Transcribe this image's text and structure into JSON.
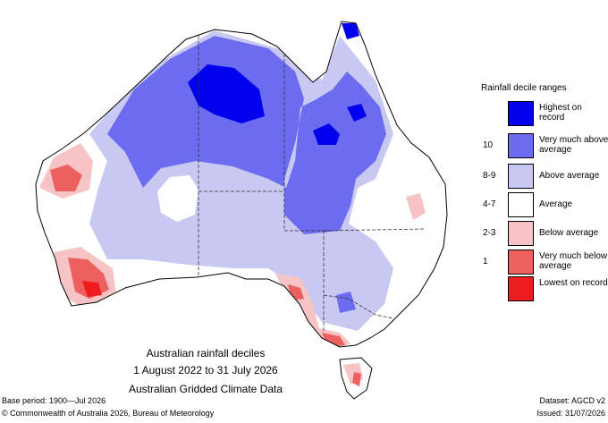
{
  "map": {
    "title": "Australian rainfall deciles",
    "period": "1 August 2022 to 31 July 2026",
    "dataset_name": "Australian Gridded Climate Data"
  },
  "legend": {
    "title": "Rainfall decile ranges",
    "items": [
      {
        "range": "",
        "label": "Highest on record",
        "color": "#0000ee"
      },
      {
        "range": "10",
        "label": "Very much above average",
        "color": "#6c6cf0"
      },
      {
        "range": "8-9",
        "label": "Above average",
        "color": "#c8c8f2"
      },
      {
        "range": "4-7",
        "label": "Average",
        "color": "#ffffff"
      },
      {
        "range": "2-3",
        "label": "Below average",
        "color": "#f6c4c4"
      },
      {
        "range": "1",
        "label": "Very much below average",
        "color": "#ec6060"
      },
      {
        "range": "",
        "label": "Lowest on record",
        "color": "#ee1c1c"
      }
    ]
  },
  "footer": {
    "base_period": "Base period: 1900—Jul 2026",
    "dataset": "Dataset: AGCD v2",
    "copyright": "© Commonwealth of Australia 2026, Bureau of Meteorology",
    "issued": "Issued: 31/07/2026"
  }
}
